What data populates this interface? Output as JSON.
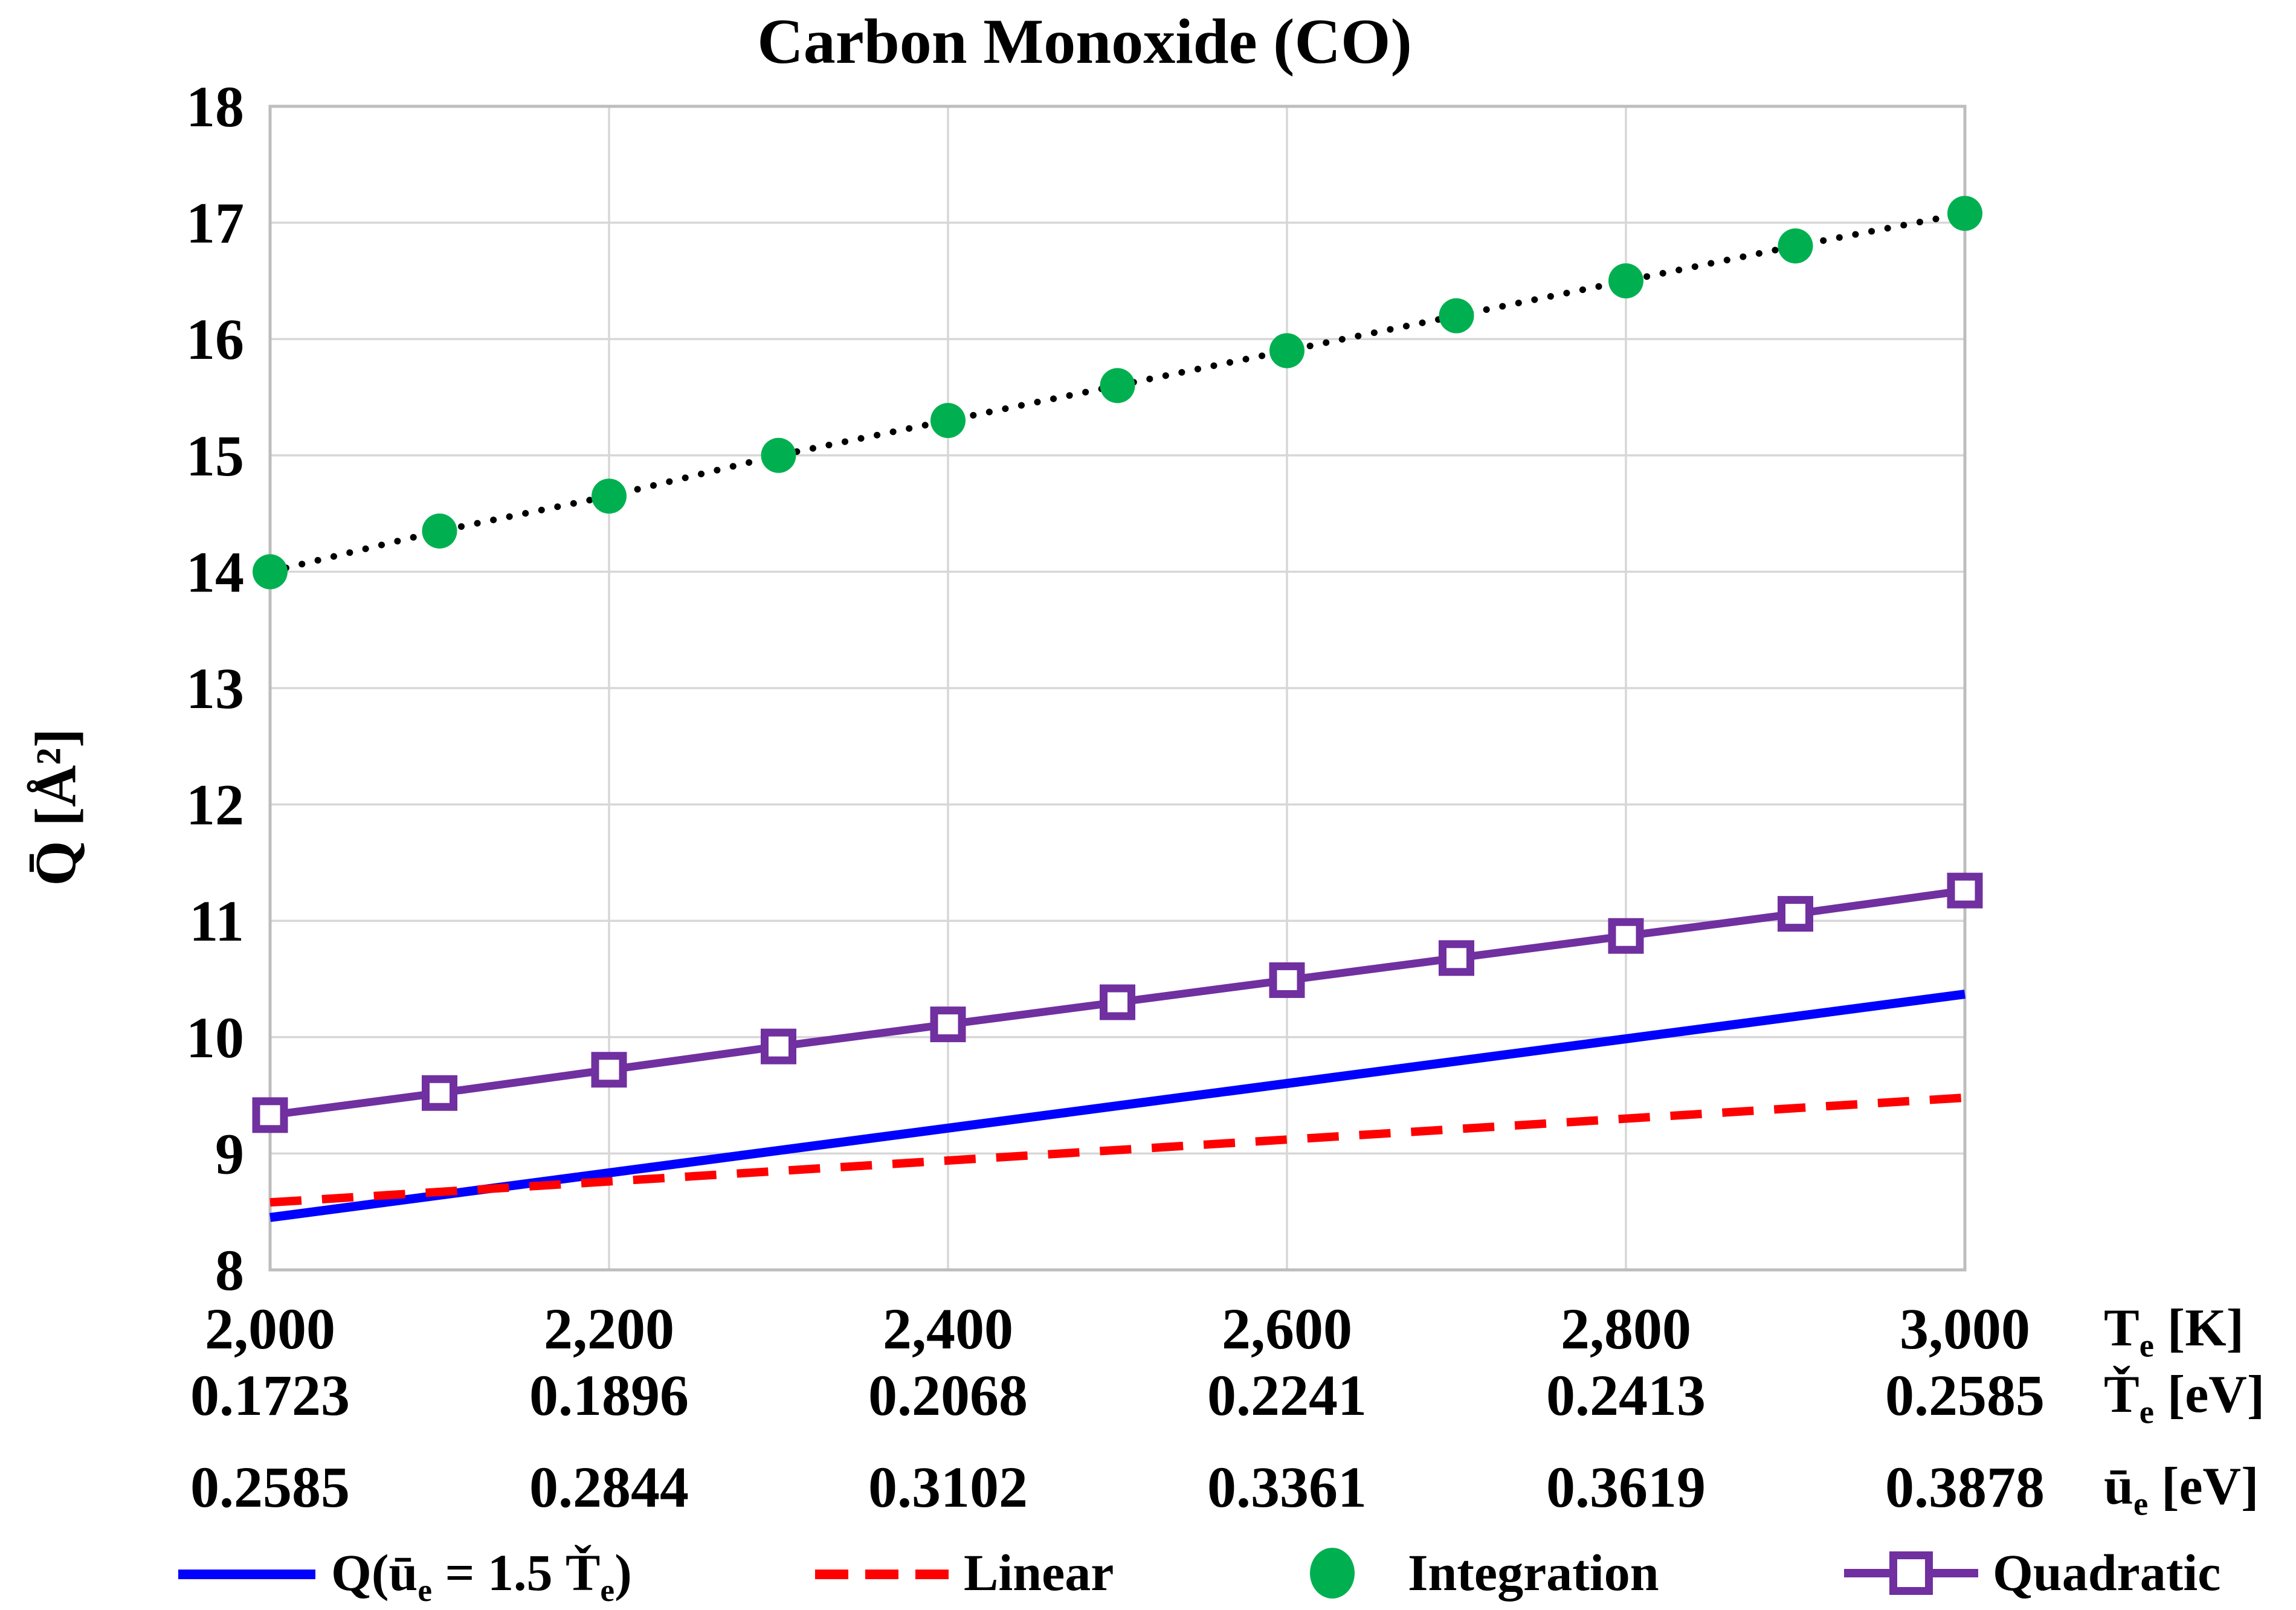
{
  "title": "Carbon Monoxide (CO)",
  "colors": {
    "blue": "#0000fe",
    "red": "#fe0000",
    "green": "#00b050",
    "purple": "#7030a0",
    "connector": "#000000",
    "gridline": "#d7d7d7",
    "border": "#bdbdbd",
    "text": "#000000"
  },
  "y_axis": {
    "title_text": "Q̄ [Å²]",
    "min": 8,
    "max": 18,
    "step": 1,
    "tick_labels": [
      "8",
      "9",
      "10",
      "11",
      "12",
      "13",
      "14",
      "15",
      "16",
      "17",
      "18"
    ]
  },
  "x_axis": {
    "min": 2000,
    "max": 3000,
    "step": 200,
    "rows": [
      {
        "unit_html": "T<sub>e</sub> [K]",
        "values": [
          "2,000",
          "2,200",
          "2,400",
          "2,600",
          "2,800",
          "3,000"
        ]
      },
      {
        "unit_html": "Ť<sub>e</sub> [eV]",
        "values": [
          "0.1723",
          "0.1896",
          "0.2068",
          "0.2241",
          "0.2413",
          "0.2585"
        ]
      },
      {
        "unit_html": "ū<sub>e</sub> [eV]",
        "values": [
          "0.2585",
          "0.2844",
          "0.3102",
          "0.3361",
          "0.3619",
          "0.3878"
        ]
      }
    ]
  },
  "chart_data": {
    "type": "line",
    "title": "Carbon Monoxide (CO)",
    "xlabel": "T_e [K]",
    "ylabel": "Q̄ [Å²]",
    "xlim": [
      2000,
      3000
    ],
    "ylim": [
      8,
      18
    ],
    "grid": true,
    "legend_position": "bottom",
    "series": [
      {
        "name": "Q(ū_e = 1.5 Ť_e)",
        "color_key": "blue",
        "dash": "solid",
        "width": 15,
        "x": [
          2000,
          3000
        ],
        "y": [
          8.45,
          10.37
        ]
      },
      {
        "name": "Linear",
        "color_key": "red",
        "dash": "dashed",
        "width": 14,
        "x": [
          2000,
          3000
        ],
        "y": [
          8.58,
          9.48
        ]
      },
      {
        "name": "Quadratic",
        "color_key": "purple",
        "dash": "solid",
        "width": 13,
        "marker": "open-square",
        "x": [
          2000,
          2100,
          2200,
          2300,
          2400,
          2500,
          2600,
          2700,
          2800,
          2900,
          3000
        ],
        "y": [
          9.33,
          9.52,
          9.72,
          9.92,
          10.11,
          10.3,
          10.49,
          10.68,
          10.87,
          11.06,
          11.26
        ]
      },
      {
        "name": "Integration",
        "color_key": "green",
        "dash": "dotted-connector",
        "width": 11,
        "marker": "circle",
        "x": [
          2000,
          2100,
          2200,
          2300,
          2400,
          2500,
          2600,
          2700,
          2800,
          2900,
          3000
        ],
        "y": [
          14.0,
          14.35,
          14.65,
          15.0,
          15.3,
          15.6,
          15.9,
          16.2,
          16.5,
          16.8,
          17.08
        ]
      }
    ]
  },
  "legend": [
    {
      "label_html": "Q(ū<sub>e</sub> = 1.5 Ť<sub>e</sub>)",
      "swatch": "blue-line"
    },
    {
      "label_html": "Linear",
      "swatch": "red-dashed"
    },
    {
      "label_html": "Integration",
      "swatch": "green-circle"
    },
    {
      "label_html": "Quadratic",
      "swatch": "purple-square-line"
    }
  ]
}
